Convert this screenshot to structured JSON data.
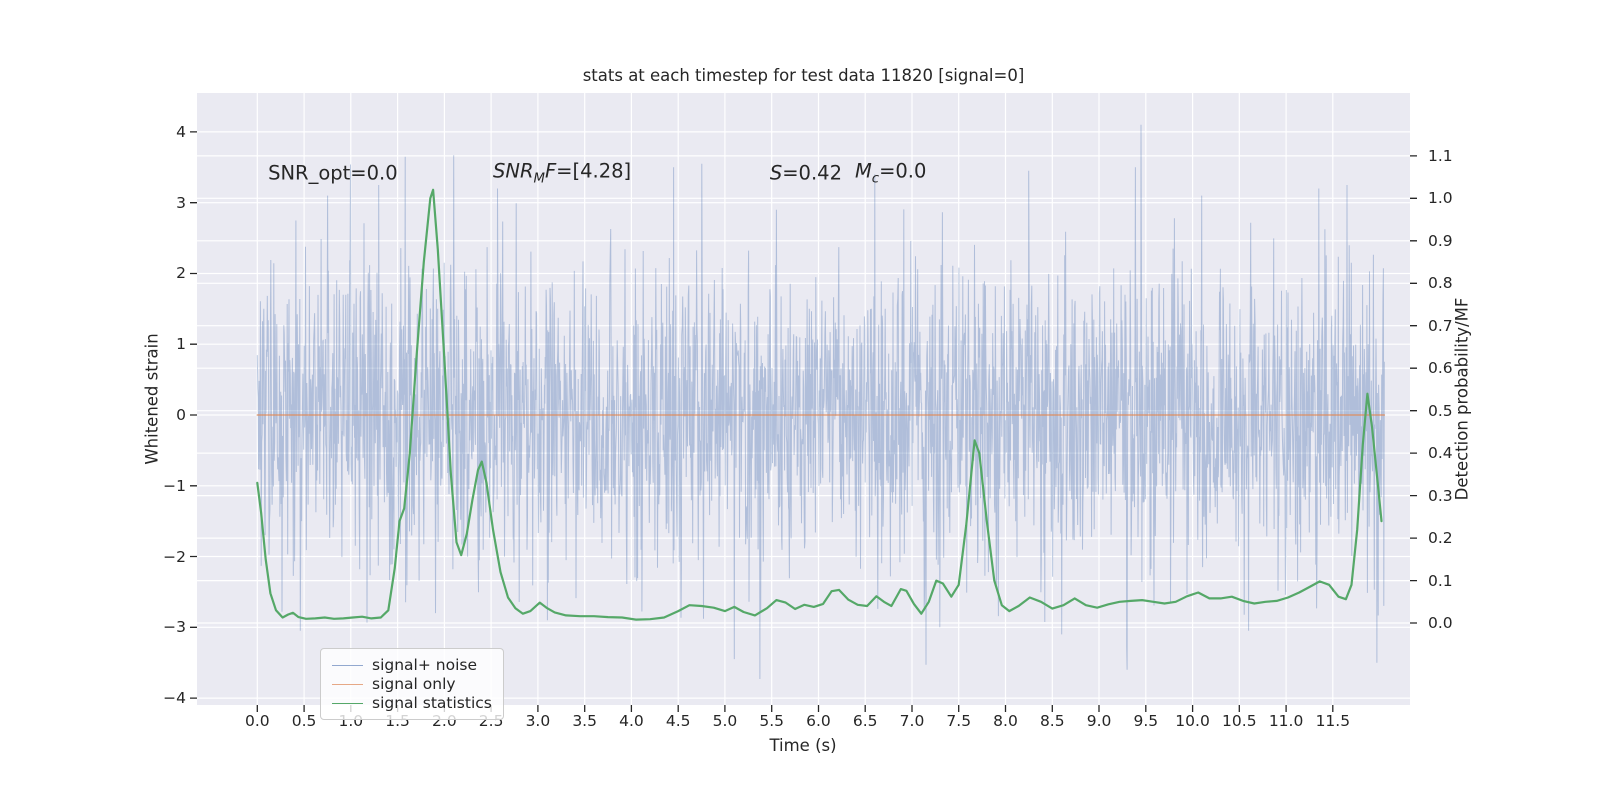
{
  "title": "stats at each timestep for test data 11820 [signal=0]",
  "axes": {
    "x": {
      "label": "Time (s)"
    },
    "left": {
      "label": "Whitened strain"
    },
    "right": {
      "label": "Detection probability/MF"
    }
  },
  "annotations": [
    {
      "name": "snr-opt",
      "t": 0.115,
      "v": 3.42,
      "parts": [
        {
          "text": "SNR_opt=0.0"
        }
      ]
    },
    {
      "name": "snr-mf",
      "t": 2.52,
      "v": 3.42,
      "parts": [
        {
          "text": "SNR",
          "italic": true
        },
        {
          "text": "M",
          "italic": true,
          "sub": true
        },
        {
          "text": "F",
          "italic": true
        },
        {
          "text": "=[4.28]"
        }
      ]
    },
    {
      "name": "s-stat",
      "t": 5.48,
      "v": 3.42,
      "parts": [
        {
          "text": "S",
          "italic": true
        },
        {
          "text": "=0.42"
        }
      ]
    },
    {
      "name": "mc-stat",
      "t": 6.39,
      "v": 3.42,
      "parts": [
        {
          "text": "M",
          "italic": true
        },
        {
          "text": "c",
          "italic": true,
          "sub": true
        },
        {
          "text": "=0.0"
        }
      ]
    }
  ],
  "legend": {
    "items": [
      {
        "label": "signal+ noise",
        "color": "#4c72b0",
        "alpha": 0.6
      },
      {
        "label": "signal only",
        "color": "#dd8452",
        "alpha": 0.7
      },
      {
        "label": "signal statistics",
        "color": "#55a868",
        "alpha": 1.0
      }
    ]
  },
  "chart_data": {
    "type": "line",
    "title": "stats at each timestep for test data 11820 [signal=0]",
    "xlabel": "Time (s)",
    "ylabel_left": "Whitened strain",
    "ylabel_right": "Detection probability/MF",
    "xlim": [
      -0.645,
      12.325
    ],
    "ylim_left": [
      -4.098,
      4.55
    ],
    "ylim_right": [
      -0.193,
      1.248
    ],
    "x_ticks": [
      0.0,
      0.5,
      1.0,
      1.5,
      2.0,
      2.5,
      3.0,
      3.5,
      4.0,
      4.5,
      5.0,
      5.5,
      6.0,
      6.5,
      7.0,
      7.5,
      8.0,
      8.5,
      9.0,
      9.5,
      10.0,
      10.5,
      11.0,
      11.5
    ],
    "y_ticks_left": [
      -4,
      -3,
      -2,
      -1,
      0,
      1,
      2,
      3,
      4
    ],
    "y_ticks_right": [
      0.0,
      0.1,
      0.2,
      0.3,
      0.4,
      0.5,
      0.6,
      0.7,
      0.8,
      0.9,
      1.0,
      1.1
    ],
    "grid": true,
    "background": "#eaeaf2",
    "grid_color": "#ffffff",
    "series": [
      {
        "name": "signal+ noise",
        "axis": "left",
        "color": "#4c72b0",
        "alpha": 0.6,
        "kind": "noise",
        "noise": {
          "t_start": 0.0,
          "t_end": 12.05,
          "n": 2600,
          "std": 1.04,
          "seed": 11820
        },
        "outliers": [
          [
            0.46,
            -3.05
          ],
          [
            0.75,
            3.1
          ],
          [
            1.3,
            3.25
          ],
          [
            1.58,
            3.65
          ],
          [
            2.1,
            3.67
          ],
          [
            2.57,
            3.2
          ],
          [
            3.1,
            -2.9
          ],
          [
            4.45,
            3.5
          ],
          [
            4.75,
            3.55
          ],
          [
            5.1,
            -3.45
          ],
          [
            5.55,
            2.9
          ],
          [
            6.6,
            3.4
          ],
          [
            7.3,
            -3.0
          ],
          [
            8.25,
            3.45
          ],
          [
            8.6,
            -3.1
          ],
          [
            9.3,
            -3.6
          ],
          [
            9.45,
            4.1
          ],
          [
            10.1,
            3.1
          ],
          [
            10.6,
            -3.05
          ],
          [
            11.35,
            3.2
          ],
          [
            11.65,
            3.25
          ],
          [
            11.97,
            -3.5
          ]
        ]
      },
      {
        "name": "signal only",
        "axis": "left",
        "color": "#dd8452",
        "alpha": 0.75,
        "kind": "line",
        "width": 1.6,
        "points": [
          [
            0.0,
            0.0
          ],
          [
            12.05,
            0.0
          ]
        ]
      },
      {
        "name": "signal statistics",
        "axis": "right",
        "color": "#55a868",
        "alpha": 1.0,
        "kind": "line",
        "width": 2.2,
        "points": [
          [
            0.0,
            0.33
          ],
          [
            0.04,
            0.26
          ],
          [
            0.09,
            0.15
          ],
          [
            0.14,
            0.07
          ],
          [
            0.2,
            0.03
          ],
          [
            0.27,
            0.013
          ],
          [
            0.33,
            0.02
          ],
          [
            0.38,
            0.024
          ],
          [
            0.44,
            0.014
          ],
          [
            0.52,
            0.01
          ],
          [
            0.62,
            0.011
          ],
          [
            0.72,
            0.013
          ],
          [
            0.82,
            0.01
          ],
          [
            0.92,
            0.011
          ],
          [
            1.02,
            0.013
          ],
          [
            1.12,
            0.015
          ],
          [
            1.22,
            0.011
          ],
          [
            1.32,
            0.013
          ],
          [
            1.4,
            0.03
          ],
          [
            1.47,
            0.13
          ],
          [
            1.52,
            0.24
          ],
          [
            1.57,
            0.27
          ],
          [
            1.63,
            0.4
          ],
          [
            1.7,
            0.62
          ],
          [
            1.78,
            0.85
          ],
          [
            1.85,
            1.0
          ],
          [
            1.88,
            1.02
          ],
          [
            1.93,
            0.88
          ],
          [
            2.0,
            0.62
          ],
          [
            2.07,
            0.35
          ],
          [
            2.13,
            0.19
          ],
          [
            2.18,
            0.16
          ],
          [
            2.24,
            0.21
          ],
          [
            2.3,
            0.29
          ],
          [
            2.36,
            0.36
          ],
          [
            2.4,
            0.38
          ],
          [
            2.45,
            0.33
          ],
          [
            2.52,
            0.22
          ],
          [
            2.6,
            0.12
          ],
          [
            2.68,
            0.06
          ],
          [
            2.76,
            0.035
          ],
          [
            2.84,
            0.022
          ],
          [
            2.92,
            0.028
          ],
          [
            3.02,
            0.048
          ],
          [
            3.1,
            0.035
          ],
          [
            3.18,
            0.025
          ],
          [
            3.3,
            0.018
          ],
          [
            3.45,
            0.016
          ],
          [
            3.6,
            0.016
          ],
          [
            3.75,
            0.014
          ],
          [
            3.9,
            0.013
          ],
          [
            4.05,
            0.008
          ],
          [
            4.2,
            0.009
          ],
          [
            4.35,
            0.013
          ],
          [
            4.5,
            0.028
          ],
          [
            4.62,
            0.042
          ],
          [
            4.75,
            0.04
          ],
          [
            4.88,
            0.036
          ],
          [
            5.0,
            0.028
          ],
          [
            5.1,
            0.038
          ],
          [
            5.2,
            0.026
          ],
          [
            5.32,
            0.018
          ],
          [
            5.45,
            0.035
          ],
          [
            5.55,
            0.054
          ],
          [
            5.65,
            0.048
          ],
          [
            5.75,
            0.033
          ],
          [
            5.85,
            0.043
          ],
          [
            5.95,
            0.038
          ],
          [
            6.05,
            0.045
          ],
          [
            6.14,
            0.075
          ],
          [
            6.22,
            0.078
          ],
          [
            6.32,
            0.055
          ],
          [
            6.42,
            0.043
          ],
          [
            6.52,
            0.04
          ],
          [
            6.62,
            0.063
          ],
          [
            6.7,
            0.05
          ],
          [
            6.78,
            0.04
          ],
          [
            6.88,
            0.08
          ],
          [
            6.94,
            0.076
          ],
          [
            7.02,
            0.045
          ],
          [
            7.1,
            0.022
          ],
          [
            7.18,
            0.05
          ],
          [
            7.26,
            0.1
          ],
          [
            7.33,
            0.093
          ],
          [
            7.42,
            0.062
          ],
          [
            7.5,
            0.09
          ],
          [
            7.58,
            0.23
          ],
          [
            7.67,
            0.43
          ],
          [
            7.72,
            0.4
          ],
          [
            7.8,
            0.24
          ],
          [
            7.88,
            0.1
          ],
          [
            7.96,
            0.042
          ],
          [
            8.04,
            0.028
          ],
          [
            8.14,
            0.04
          ],
          [
            8.26,
            0.06
          ],
          [
            8.38,
            0.05
          ],
          [
            8.5,
            0.034
          ],
          [
            8.62,
            0.042
          ],
          [
            8.74,
            0.058
          ],
          [
            8.86,
            0.042
          ],
          [
            8.98,
            0.036
          ],
          [
            9.1,
            0.044
          ],
          [
            9.22,
            0.05
          ],
          [
            9.34,
            0.052
          ],
          [
            9.46,
            0.054
          ],
          [
            9.58,
            0.05
          ],
          [
            9.7,
            0.046
          ],
          [
            9.82,
            0.05
          ],
          [
            9.94,
            0.063
          ],
          [
            10.06,
            0.072
          ],
          [
            10.18,
            0.058
          ],
          [
            10.3,
            0.058
          ],
          [
            10.42,
            0.062
          ],
          [
            10.54,
            0.052
          ],
          [
            10.66,
            0.046
          ],
          [
            10.78,
            0.05
          ],
          [
            10.9,
            0.052
          ],
          [
            11.02,
            0.06
          ],
          [
            11.14,
            0.072
          ],
          [
            11.26,
            0.086
          ],
          [
            11.36,
            0.098
          ],
          [
            11.46,
            0.09
          ],
          [
            11.56,
            0.062
          ],
          [
            11.64,
            0.056
          ],
          [
            11.7,
            0.09
          ],
          [
            11.76,
            0.22
          ],
          [
            11.82,
            0.42
          ],
          [
            11.87,
            0.54
          ],
          [
            11.92,
            0.46
          ],
          [
            11.98,
            0.33
          ],
          [
            12.02,
            0.24
          ]
        ]
      }
    ]
  }
}
